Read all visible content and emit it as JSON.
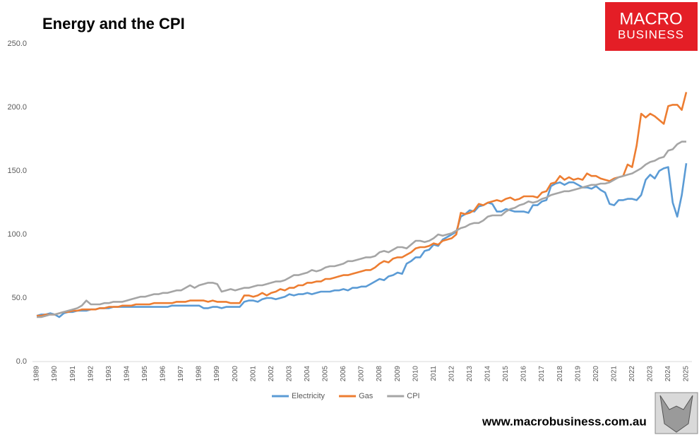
{
  "chart_data": {
    "type": "line",
    "title": "Energy and the CPI",
    "logo": [
      "MACRO",
      "BUSINESS"
    ],
    "source": "www.macrobusiness.com.au",
    "categories": [
      "1989",
      null,
      null,
      null,
      "1990",
      null,
      null,
      null,
      "1991",
      null,
      null,
      null,
      "1992",
      null,
      null,
      null,
      "1993",
      null,
      null,
      null,
      "1994",
      null,
      null,
      null,
      "1995",
      null,
      null,
      null,
      "1996",
      null,
      null,
      null,
      "1997",
      null,
      null,
      null,
      "1998",
      null,
      null,
      null,
      "1999",
      null,
      null,
      null,
      "2000",
      null,
      null,
      null,
      "2001",
      null,
      null,
      null,
      "2002",
      null,
      null,
      null,
      "2003",
      null,
      null,
      null,
      "2004",
      null,
      null,
      null,
      "2005",
      null,
      null,
      null,
      "2006",
      null,
      null,
      null,
      "2007",
      null,
      null,
      null,
      "2008",
      null,
      null,
      null,
      "2009",
      null,
      null,
      null,
      "2010",
      null,
      null,
      null,
      "2011",
      null,
      null,
      null,
      "2012",
      null,
      null,
      null,
      "2013",
      null,
      null,
      null,
      "2014",
      null,
      null,
      null,
      "2015",
      null,
      null,
      null,
      "2016",
      null,
      null,
      null,
      "2017",
      null,
      null,
      null,
      "2018",
      null,
      null,
      null,
      "2019",
      null,
      null,
      null,
      "2020",
      null,
      null,
      null,
      "2021",
      null,
      null,
      null,
      "2022",
      null,
      null,
      null,
      "2023",
      null,
      null,
      null,
      "2024",
      null,
      null,
      null,
      "2025"
    ],
    "series": [
      {
        "name": "Electricity",
        "color": "#5b9bd5",
        "values": [
          36,
          37,
          37,
          38,
          37,
          35,
          38,
          39,
          39,
          40,
          40,
          40,
          41,
          41,
          42,
          42,
          42,
          43,
          43,
          43,
          43,
          43,
          43,
          43,
          43,
          43,
          43,
          43,
          43,
          43,
          44,
          44,
          44,
          44,
          44,
          44,
          44,
          42,
          42,
          43,
          43,
          42,
          43,
          43,
          43,
          43,
          47,
          48,
          48,
          47,
          49,
          50,
          50,
          49,
          50,
          51,
          53,
          52,
          53,
          53,
          54,
          53,
          54,
          55,
          55,
          55,
          56,
          56,
          57,
          56,
          58,
          58,
          59,
          59,
          61,
          63,
          65,
          64,
          67,
          68,
          70,
          69,
          77,
          79,
          82,
          82,
          87,
          88,
          92,
          91,
          96,
          98,
          100,
          102,
          114,
          116,
          119,
          118,
          122,
          123,
          125,
          124,
          118,
          118,
          120,
          119,
          118,
          118,
          118,
          117,
          123,
          123,
          126,
          127,
          138,
          140,
          141,
          139,
          141,
          141,
          139,
          137,
          137,
          136,
          138,
          135,
          133,
          124,
          123,
          127,
          127,
          128,
          128,
          127,
          131,
          143,
          147,
          144,
          150,
          152,
          153,
          125,
          114,
          131,
          156
        ]
      },
      {
        "name": "Gas",
        "color": "#ed7d31",
        "values": [
          36,
          36,
          37,
          37,
          37,
          38,
          39,
          39,
          40,
          40,
          41,
          41,
          41,
          41,
          42,
          42,
          43,
          43,
          43,
          44,
          44,
          44,
          45,
          45,
          45,
          45,
          46,
          46,
          46,
          46,
          46,
          47,
          47,
          47,
          48,
          48,
          48,
          48,
          47,
          48,
          47,
          47,
          47,
          46,
          46,
          46,
          52,
          52,
          51,
          52,
          54,
          52,
          54,
          55,
          57,
          56,
          58,
          58,
          60,
          60,
          62,
          62,
          63,
          63,
          65,
          65,
          66,
          67,
          68,
          68,
          69,
          70,
          71,
          72,
          72,
          74,
          77,
          79,
          78,
          81,
          82,
          82,
          84,
          86,
          89,
          90,
          90,
          91,
          93,
          92,
          95,
          96,
          97,
          100,
          117,
          116,
          117,
          119,
          124,
          123,
          125,
          126,
          127,
          126,
          128,
          129,
          127,
          128,
          130,
          130,
          130,
          129,
          133,
          134,
          140,
          141,
          146,
          143,
          145,
          143,
          144,
          143,
          148,
          146,
          146,
          144,
          143,
          142,
          144,
          145,
          146,
          155,
          153,
          170,
          195,
          192,
          195,
          193,
          190,
          187,
          201,
          202,
          202,
          198,
          212
        ]
      },
      {
        "name": "CPI",
        "color": "#a5a5a5",
        "values": [
          35,
          35,
          36,
          37,
          37,
          38,
          39,
          40,
          41,
          42,
          44,
          48,
          45,
          45,
          45,
          46,
          46,
          47,
          47,
          47,
          48,
          49,
          50,
          51,
          51,
          52,
          53,
          53,
          54,
          54,
          55,
          56,
          56,
          58,
          60,
          58,
          60,
          61,
          62,
          62,
          61,
          55,
          56,
          57,
          56,
          57,
          58,
          58,
          59,
          60,
          60,
          61,
          62,
          63,
          63,
          64,
          66,
          68,
          68,
          69,
          70,
          72,
          71,
          72,
          74,
          75,
          75,
          76,
          77,
          79,
          79,
          80,
          81,
          82,
          82,
          83,
          86,
          87,
          86,
          88,
          90,
          90,
          89,
          92,
          95,
          95,
          94,
          95,
          97,
          100,
          99,
          100,
          101,
          103,
          105,
          106,
          108,
          109,
          109,
          111,
          114,
          115,
          115,
          115,
          118,
          120,
          121,
          123,
          124,
          126,
          125,
          126,
          128,
          129,
          131,
          132,
          133,
          134,
          134,
          135,
          136,
          137,
          138,
          139,
          139,
          140,
          140,
          141,
          143,
          145,
          146,
          147,
          148,
          150,
          152,
          155,
          157,
          158,
          160,
          161,
          166,
          167,
          171,
          173,
          173
        ]
      }
    ],
    "ylim": [
      0,
      250
    ],
    "yticks": [
      {
        "value": 0,
        "label": "0.0"
      },
      {
        "value": 50,
        "label": "50.0"
      },
      {
        "value": 100,
        "label": "100.0"
      },
      {
        "value": 150,
        "label": "150.0"
      },
      {
        "value": 200,
        "label": "200.0"
      },
      {
        "value": 250,
        "label": "250.0"
      }
    ],
    "grid": false,
    "legend": "bottom"
  }
}
